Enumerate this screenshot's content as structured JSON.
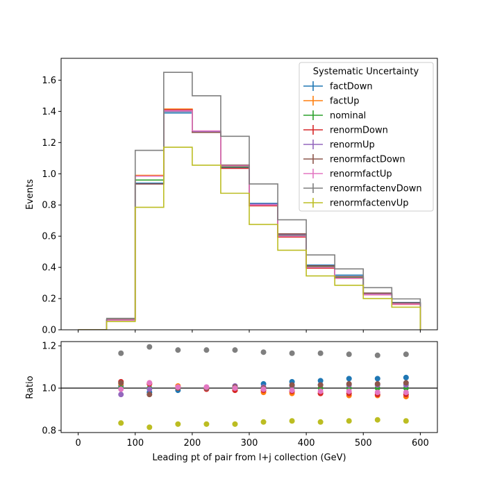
{
  "chart_data": [
    {
      "type": "step",
      "xlabel": "",
      "ylabel": "Events",
      "xlim": [
        -30,
        630
      ],
      "ylim": [
        0,
        1.74
      ],
      "yticks": [
        0.0,
        0.2,
        0.4,
        0.6,
        0.8,
        1.0,
        1.2,
        1.4,
        1.6
      ],
      "ytick_labels": [
        "0.0",
        "0.2",
        "0.4",
        "0.6",
        "0.8",
        "1.0",
        "1.2",
        "1.4",
        "1.6"
      ],
      "xticks": [
        0,
        100,
        200,
        300,
        400,
        500,
        600
      ],
      "bin_edges": [
        0,
        50,
        100,
        150,
        200,
        250,
        300,
        350,
        400,
        450,
        500,
        550,
        600
      ],
      "legend": {
        "title": "Systematic Uncertainty",
        "placement": "upper right"
      },
      "series": [
        {
          "name": "factDown",
          "color": "#1f77b4",
          "values": [
            0.0,
            0.065,
            0.94,
            1.39,
            1.27,
            1.04,
            0.81,
            0.615,
            0.415,
            0.35,
            0.235,
            0.175
          ]
        },
        {
          "name": "factUp",
          "color": "#ff7f0e",
          "values": [
            0.0,
            0.062,
            0.99,
            1.415,
            1.27,
            1.045,
            0.795,
            0.595,
            0.4,
            0.33,
            0.225,
            0.163
          ]
        },
        {
          "name": "nominal",
          "color": "#2ca02c",
          "values": [
            0.0,
            0.063,
            0.96,
            1.4,
            1.27,
            1.045,
            0.8,
            0.605,
            0.405,
            0.335,
            0.23,
            0.168
          ]
        },
        {
          "name": "renormDown",
          "color": "#d62728",
          "values": [
            0.0,
            0.065,
            0.985,
            1.41,
            1.265,
            1.035,
            0.795,
            0.595,
            0.395,
            0.33,
            0.225,
            0.163
          ]
        },
        {
          "name": "renormUp",
          "color": "#9467bd",
          "values": [
            0.0,
            0.061,
            0.935,
            1.4,
            1.27,
            1.055,
            0.805,
            0.61,
            0.41,
            0.34,
            0.232,
            0.17
          ]
        },
        {
          "name": "renormfactDown",
          "color": "#8c564b",
          "values": [
            0.0,
            0.066,
            0.935,
            1.405,
            1.265,
            1.055,
            0.8,
            0.615,
            0.41,
            0.34,
            0.235,
            0.172
          ]
        },
        {
          "name": "renormfactUp",
          "color": "#e377c2",
          "values": [
            0.0,
            0.062,
            0.985,
            1.405,
            1.275,
            1.05,
            0.8,
            0.6,
            0.4,
            0.33,
            0.225,
            0.165
          ]
        },
        {
          "name": "renormfactenvDown",
          "color": "#7f7f7f",
          "values": [
            0.0,
            0.073,
            1.15,
            1.65,
            1.5,
            1.24,
            0.935,
            0.705,
            0.48,
            0.39,
            0.27,
            0.198
          ]
        },
        {
          "name": "renormfactenvUp",
          "color": "#bcbd22",
          "values": [
            0.0,
            0.053,
            0.785,
            1.17,
            1.055,
            0.875,
            0.675,
            0.51,
            0.345,
            0.285,
            0.2,
            0.145
          ]
        }
      ]
    },
    {
      "type": "scatter",
      "xlabel": "Leading pt of pair from l+j collection (GeV)",
      "ylabel": "Ratio",
      "xlim": [
        -30,
        630
      ],
      "ylim": [
        0.79,
        1.22
      ],
      "yticks": [
        0.8,
        1.0,
        1.2
      ],
      "ytick_labels": [
        "0.8",
        "1.0",
        "1.2"
      ],
      "xticks": [
        0,
        100,
        200,
        300,
        400,
        500,
        600
      ],
      "xtick_labels": [
        "0",
        "100",
        "200",
        "300",
        "400",
        "500",
        "600"
      ],
      "reference_line": 1.0,
      "x": [
        75,
        125,
        175,
        225,
        275,
        325,
        375,
        425,
        475,
        525,
        575
      ],
      "series": [
        {
          "name": "factDown",
          "color": "#1f77b4",
          "values": [
            1.01,
            0.98,
            0.99,
            1.0,
            1.0,
            1.02,
            1.03,
            1.035,
            1.045,
            1.045,
            1.05
          ]
        },
        {
          "name": "factUp",
          "color": "#ff7f0e",
          "values": [
            1.02,
            1.02,
            1.01,
            1.0,
            0.99,
            0.98,
            0.975,
            0.975,
            0.965,
            0.965,
            0.96
          ]
        },
        {
          "name": "nominal",
          "color": "#2ca02c",
          "values": [
            1.0,
            1.0,
            1.0,
            1.0,
            1.0,
            1.0,
            1.0,
            1.0,
            1.0,
            1.0,
            1.0
          ]
        },
        {
          "name": "renormDown",
          "color": "#d62728",
          "values": [
            1.03,
            1.02,
            1.005,
            0.995,
            0.99,
            0.99,
            0.985,
            0.975,
            0.975,
            0.97,
            0.97
          ]
        },
        {
          "name": "renormUp",
          "color": "#9467bd",
          "values": [
            0.97,
            0.995,
            1.0,
            1.0,
            1.01,
            1.005,
            1.01,
            1.015,
            1.015,
            1.015,
            1.015
          ]
        },
        {
          "name": "renormfactDown",
          "color": "#8c564b",
          "values": [
            1.025,
            0.97,
            1.0,
            1.0,
            1.005,
            1.0,
            1.015,
            1.015,
            1.02,
            1.02,
            1.025
          ]
        },
        {
          "name": "renormfactUp",
          "color": "#e377c2",
          "values": [
            0.995,
            1.025,
            1.005,
            1.005,
            1.0,
            0.995,
            0.99,
            0.985,
            0.985,
            0.98,
            0.98
          ]
        },
        {
          "name": "renormfactenvDown",
          "color": "#7f7f7f",
          "values": [
            1.165,
            1.195,
            1.18,
            1.18,
            1.18,
            1.17,
            1.165,
            1.165,
            1.16,
            1.155,
            1.16
          ]
        },
        {
          "name": "renormfactenvUp",
          "color": "#bcbd22",
          "values": [
            0.835,
            0.815,
            0.83,
            0.83,
            0.83,
            0.84,
            0.845,
            0.84,
            0.845,
            0.85,
            0.845
          ]
        }
      ]
    }
  ]
}
